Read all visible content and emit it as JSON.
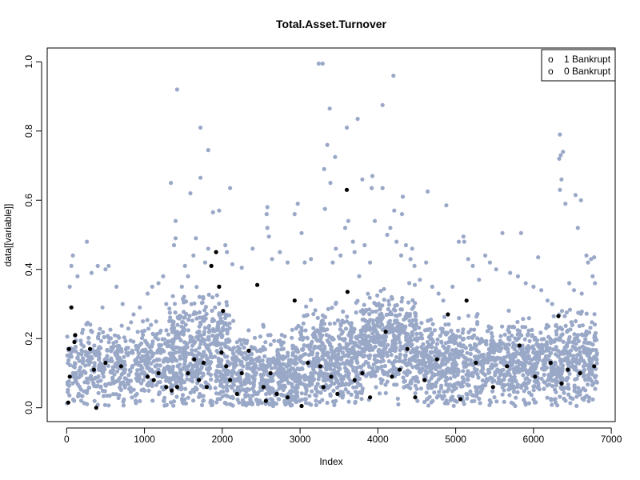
{
  "chart_data": {
    "type": "scatter",
    "title": "Total.Asset.Turnover",
    "xlabel": "Index",
    "ylabel": "data[[variable]]",
    "xlim": [
      -250,
      7050
    ],
    "ylim": [
      -0.04,
      1.04
    ],
    "x_ticks": [
      0,
      1000,
      2000,
      3000,
      4000,
      5000,
      6000,
      7000
    ],
    "x_tick_labels": [
      "0",
      "1000",
      "2000",
      "3000",
      "4000",
      "5000",
      "6000",
      "7000"
    ],
    "y_ticks": [
      0.0,
      0.2,
      0.4,
      0.6,
      0.8,
      1.0
    ],
    "y_tick_labels": [
      "0.0",
      "0.2",
      "0.4",
      "0.6",
      "0.8",
      "1.0"
    ],
    "legend": {
      "position": "top-right",
      "entries": [
        {
          "label": "1 Bankrupt",
          "symbol": "o"
        },
        {
          "label": "0 Bankrupt",
          "symbol": "o"
        }
      ]
    },
    "series": [
      {
        "name": "0 Bankrupt",
        "color": "#9aa8c8",
        "points": [
          [
            1420,
            0.92
          ],
          [
            1720,
            0.81
          ],
          [
            1820,
            0.745
          ],
          [
            1340,
            0.65
          ],
          [
            1590,
            0.62
          ],
          [
            2100,
            0.635
          ],
          [
            1960,
            0.57
          ],
          [
            1880,
            0.565
          ],
          [
            1720,
            0.665
          ],
          [
            2580,
            0.58
          ],
          [
            2570,
            0.56
          ],
          [
            2930,
            0.56
          ],
          [
            2970,
            0.59
          ],
          [
            3240,
            0.995
          ],
          [
            3290,
            0.995
          ],
          [
            3380,
            0.865
          ],
          [
            3600,
            0.81
          ],
          [
            3740,
            0.835
          ],
          [
            3310,
            0.69
          ],
          [
            3450,
            0.725
          ],
          [
            3350,
            0.76
          ],
          [
            3320,
            0.575
          ],
          [
            3390,
            0.65
          ],
          [
            3620,
            0.54
          ],
          [
            3580,
            0.52
          ],
          [
            3800,
            0.66
          ],
          [
            3930,
            0.67
          ],
          [
            3920,
            0.635
          ],
          [
            3960,
            0.54
          ],
          [
            4060,
            0.875
          ],
          [
            4060,
            0.635
          ],
          [
            4200,
            0.96
          ],
          [
            4320,
            0.61
          ],
          [
            4310,
            0.56
          ],
          [
            4210,
            0.57
          ],
          [
            4440,
            0.46
          ],
          [
            4640,
            0.625
          ],
          [
            4880,
            0.585
          ],
          [
            5100,
            0.495
          ],
          [
            5110,
            0.48
          ],
          [
            5600,
            0.505
          ],
          [
            5840,
            0.505
          ],
          [
            6060,
            0.435
          ],
          [
            6340,
            0.79
          ],
          [
            6330,
            0.72
          ],
          [
            6350,
            0.73
          ],
          [
            6380,
            0.74
          ],
          [
            6340,
            0.63
          ],
          [
            6360,
            0.66
          ],
          [
            6410,
            0.59
          ],
          [
            6540,
            0.615
          ],
          [
            6570,
            0.52
          ],
          [
            6610,
            0.6
          ],
          [
            6680,
            0.44
          ],
          [
            6740,
            0.43
          ],
          [
            6780,
            0.435
          ],
          [
            6700,
            0.42
          ],
          [
            1400,
            0.49
          ],
          [
            1380,
            0.47
          ],
          [
            1400,
            0.54
          ],
          [
            1660,
            0.49
          ],
          [
            1480,
            0.35
          ],
          [
            1520,
            0.41
          ],
          [
            1560,
            0.38
          ],
          [
            1630,
            0.44
          ],
          [
            1780,
            0.42
          ],
          [
            1820,
            0.46
          ],
          [
            2040,
            0.47
          ],
          [
            2060,
            0.45
          ],
          [
            2130,
            0.415
          ],
          [
            2250,
            0.405
          ],
          [
            2390,
            0.46
          ],
          [
            2580,
            0.52
          ],
          [
            2600,
            0.495
          ],
          [
            2640,
            0.43
          ],
          [
            2740,
            0.45
          ],
          [
            2840,
            0.42
          ],
          [
            3020,
            0.505
          ],
          [
            3060,
            0.42
          ],
          [
            3140,
            0.43
          ],
          [
            3420,
            0.42
          ],
          [
            3460,
            0.46
          ],
          [
            3520,
            0.44
          ],
          [
            3680,
            0.48
          ],
          [
            3700,
            0.45
          ],
          [
            3760,
            0.38
          ],
          [
            3830,
            0.47
          ],
          [
            3900,
            0.42
          ],
          [
            4120,
            0.5
          ],
          [
            4160,
            0.52
          ],
          [
            4240,
            0.48
          ],
          [
            4300,
            0.44
          ],
          [
            4360,
            0.47
          ],
          [
            4420,
            0.43
          ],
          [
            4470,
            0.41
          ],
          [
            4540,
            0.37
          ],
          [
            4620,
            0.42
          ],
          [
            4700,
            0.35
          ],
          [
            4780,
            0.33
          ],
          [
            4840,
            0.31
          ],
          [
            4960,
            0.35
          ],
          [
            5040,
            0.48
          ],
          [
            5160,
            0.43
          ],
          [
            5220,
            0.41
          ],
          [
            5300,
            0.37
          ],
          [
            5380,
            0.44
          ],
          [
            5440,
            0.42
          ],
          [
            5520,
            0.4
          ],
          [
            5700,
            0.39
          ],
          [
            5800,
            0.38
          ],
          [
            5900,
            0.36
          ],
          [
            6000,
            0.35
          ],
          [
            6100,
            0.34
          ],
          [
            6180,
            0.31
          ],
          [
            6240,
            0.3
          ],
          [
            6460,
            0.36
          ],
          [
            6520,
            0.34
          ],
          [
            6620,
            0.33
          ],
          [
            6760,
            0.38
          ],
          [
            6790,
            0.36
          ],
          [
            80,
            0.44
          ],
          [
            60,
            0.41
          ],
          [
            40,
            0.35
          ],
          [
            140,
            0.38
          ],
          [
            260,
            0.48
          ],
          [
            320,
            0.39
          ],
          [
            400,
            0.41
          ],
          [
            500,
            0.4
          ],
          [
            540,
            0.41
          ],
          [
            640,
            0.35
          ],
          [
            460,
            0.29
          ],
          [
            720,
            0.3
          ],
          [
            860,
            0.27
          ],
          [
            940,
            0.29
          ],
          [
            1040,
            0.33
          ],
          [
            1100,
            0.35
          ],
          [
            1180,
            0.36
          ],
          [
            1240,
            0.38
          ],
          [
            1280,
            0.3
          ],
          [
            980,
            0.25
          ]
        ],
        "cloud": [
          {
            "x_range": [
              0,
              1000
            ],
            "y_mean": 0.12,
            "y_spread": 0.075,
            "count": 380
          },
          {
            "x_range": [
              1000,
              1300
            ],
            "y_mean": 0.13,
            "y_spread": 0.085,
            "count": 130
          },
          {
            "x_range": [
              1300,
              2100
            ],
            "y_mean": 0.15,
            "y_spread": 0.11,
            "count": 520
          },
          {
            "x_range": [
              2100,
              3000
            ],
            "y_mean": 0.1,
            "y_spread": 0.08,
            "count": 480
          },
          {
            "x_range": [
              3000,
              3800
            ],
            "y_mean": 0.14,
            "y_spread": 0.095,
            "count": 460
          },
          {
            "x_range": [
              3800,
              4500
            ],
            "y_mean": 0.19,
            "y_spread": 0.1,
            "count": 430
          },
          {
            "x_range": [
              4500,
              5300
            ],
            "y_mean": 0.13,
            "y_spread": 0.085,
            "count": 420
          },
          {
            "x_range": [
              5300,
              6300
            ],
            "y_mean": 0.13,
            "y_spread": 0.08,
            "count": 500
          },
          {
            "x_range": [
              6300,
              6820
            ],
            "y_mean": 0.14,
            "y_spread": 0.09,
            "count": 260
          }
        ]
      },
      {
        "name": "1 Bankrupt",
        "color": "#000000",
        "points": [
          [
            30,
            0.17
          ],
          [
            60,
            0.29
          ],
          [
            100,
            0.19
          ],
          [
            110,
            0.21
          ],
          [
            40,
            0.09
          ],
          [
            20,
            0.015
          ],
          [
            380,
            0.0
          ],
          [
            300,
            0.17
          ],
          [
            350,
            0.11
          ],
          [
            500,
            0.13
          ],
          [
            700,
            0.12
          ],
          [
            1040,
            0.09
          ],
          [
            1120,
            0.08
          ],
          [
            1180,
            0.1
          ],
          [
            1280,
            0.06
          ],
          [
            1350,
            0.05
          ],
          [
            1420,
            0.06
          ],
          [
            1560,
            0.1
          ],
          [
            1640,
            0.14
          ],
          [
            1700,
            0.08
          ],
          [
            1760,
            0.13
          ],
          [
            1800,
            0.06
          ],
          [
            1860,
            0.41
          ],
          [
            1920,
            0.45
          ],
          [
            1960,
            0.35
          ],
          [
            2010,
            0.28
          ],
          [
            1990,
            0.16
          ],
          [
            2050,
            0.12
          ],
          [
            2100,
            0.08
          ],
          [
            2190,
            0.04
          ],
          [
            2250,
            0.1
          ],
          [
            2340,
            0.165
          ],
          [
            2450,
            0.355
          ],
          [
            2530,
            0.06
          ],
          [
            2560,
            0.02
          ],
          [
            2620,
            0.1
          ],
          [
            2700,
            0.04
          ],
          [
            2840,
            0.03
          ],
          [
            2930,
            0.31
          ],
          [
            3020,
            0.005
          ],
          [
            3100,
            0.13
          ],
          [
            3260,
            0.12
          ],
          [
            3300,
            0.06
          ],
          [
            3400,
            0.09
          ],
          [
            3480,
            0.04
          ],
          [
            3600,
            0.63
          ],
          [
            3610,
            0.335
          ],
          [
            3700,
            0.08
          ],
          [
            3800,
            0.1
          ],
          [
            3900,
            0.03
          ],
          [
            4100,
            0.22
          ],
          [
            4180,
            0.09
          ],
          [
            4280,
            0.11
          ],
          [
            4380,
            0.17
          ],
          [
            4480,
            0.03
          ],
          [
            4600,
            0.08
          ],
          [
            4760,
            0.14
          ],
          [
            4900,
            0.27
          ],
          [
            5060,
            0.025
          ],
          [
            5140,
            0.31
          ],
          [
            5260,
            0.13
          ],
          [
            5480,
            0.06
          ],
          [
            5660,
            0.12
          ],
          [
            5820,
            0.18
          ],
          [
            6020,
            0.09
          ],
          [
            6220,
            0.13
          ],
          [
            6320,
            0.265
          ],
          [
            6360,
            0.07
          ],
          [
            6440,
            0.11
          ],
          [
            6600,
            0.1
          ],
          [
            6780,
            0.12
          ]
        ]
      }
    ]
  }
}
